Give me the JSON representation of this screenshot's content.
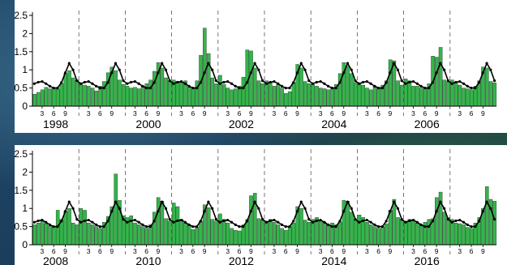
{
  "chart_data": [
    {
      "type": "bar",
      "overlay": "line",
      "ylim": [
        0,
        2.5
      ],
      "yticks": [
        "0",
        "0.5",
        "1",
        "1.5",
        "2",
        "2.5"
      ],
      "month_ticks": [
        "3",
        "6",
        "9"
      ],
      "year_labels": [
        "1998",
        "2000",
        "2002",
        "2004",
        "2006"
      ],
      "start_year": 1998,
      "years": 10,
      "bar_color": "#33b54a",
      "line_color": "#000000",
      "grid": false,
      "bars": [
        0.33,
        0.38,
        0.45,
        0.52,
        0.48,
        0.5,
        0.47,
        0.62,
        0.9,
        0.98,
        0.78,
        0.72,
        0.62,
        0.58,
        0.55,
        0.5,
        0.42,
        0.55,
        0.68,
        0.92,
        1.08,
        0.98,
        0.72,
        0.6,
        0.55,
        0.5,
        0.52,
        0.48,
        0.55,
        0.62,
        0.72,
        0.96,
        1.2,
        1.05,
        0.78,
        0.7,
        0.72,
        0.68,
        0.65,
        0.7,
        0.52,
        0.48,
        0.7,
        1.4,
        2.15,
        1.45,
        0.78,
        0.62,
        0.85,
        0.6,
        0.5,
        0.45,
        0.48,
        0.55,
        0.8,
        1.55,
        1.52,
        1.05,
        0.7,
        0.62,
        0.7,
        0.65,
        0.55,
        0.6,
        0.5,
        0.35,
        0.4,
        0.65,
        1.15,
        1.05,
        0.68,
        0.62,
        0.6,
        0.55,
        0.5,
        0.48,
        0.45,
        0.5,
        0.6,
        0.9,
        1.2,
        1.1,
        0.9,
        0.65,
        0.62,
        0.58,
        0.5,
        0.45,
        0.55,
        0.48,
        0.58,
        0.7,
        1.28,
        1.25,
        0.7,
        0.58,
        0.75,
        0.7,
        0.55,
        0.55,
        0.5,
        0.48,
        0.62,
        1.38,
        1.35,
        1.62,
        0.72,
        0.68,
        0.72,
        0.65,
        0.58,
        0.5,
        0.48,
        0.45,
        0.55,
        0.7,
        1.08,
        1.05,
        0.68,
        0.64
      ],
      "line": [
        0.62,
        0.66,
        0.68,
        0.62,
        0.55,
        0.5,
        0.5,
        0.65,
        0.92,
        1.18,
        1.0,
        0.7,
        0.62,
        0.66,
        0.68,
        0.62,
        0.55,
        0.5,
        0.5,
        0.65,
        0.92,
        1.18,
        1.0,
        0.7,
        0.62,
        0.66,
        0.68,
        0.62,
        0.55,
        0.5,
        0.5,
        0.65,
        0.92,
        1.18,
        1.0,
        0.7,
        0.62,
        0.66,
        0.68,
        0.62,
        0.55,
        0.5,
        0.5,
        0.65,
        0.92,
        1.18,
        1.0,
        0.7,
        0.62,
        0.66,
        0.68,
        0.62,
        0.55,
        0.5,
        0.5,
        0.65,
        0.92,
        1.18,
        1.0,
        0.7,
        0.62,
        0.66,
        0.68,
        0.62,
        0.55,
        0.5,
        0.5,
        0.65,
        0.92,
        1.18,
        1.0,
        0.7,
        0.62,
        0.66,
        0.68,
        0.62,
        0.55,
        0.5,
        0.5,
        0.65,
        0.92,
        1.18,
        1.0,
        0.7,
        0.62,
        0.66,
        0.68,
        0.62,
        0.55,
        0.5,
        0.5,
        0.65,
        0.92,
        1.18,
        1.0,
        0.7,
        0.62,
        0.66,
        0.68,
        0.62,
        0.55,
        0.5,
        0.5,
        0.65,
        0.92,
        1.18,
        1.0,
        0.7,
        0.62,
        0.66,
        0.68,
        0.62,
        0.55,
        0.5,
        0.5,
        0.65,
        0.92,
        1.18,
        1.0,
        0.7
      ]
    },
    {
      "type": "bar",
      "overlay": "line",
      "ylim": [
        0,
        2.5
      ],
      "yticks": [
        "0",
        "0.5",
        "1",
        "1.5",
        "2",
        "2.5"
      ],
      "month_ticks": [
        "3",
        "6",
        "9"
      ],
      "year_labels": [
        "2008",
        "2010",
        "2012",
        "2014",
        "2016"
      ],
      "start_year": 2008,
      "years": 10,
      "bar_color": "#33b54a",
      "line_color": "#000000",
      "grid": false,
      "bars": [
        0.55,
        0.6,
        0.65,
        0.58,
        0.52,
        0.5,
        0.95,
        0.7,
        0.92,
        1.0,
        0.6,
        0.55,
        1.0,
        0.95,
        0.6,
        0.55,
        0.5,
        0.45,
        0.62,
        0.78,
        1.05,
        1.95,
        1.22,
        0.8,
        0.75,
        0.8,
        0.6,
        0.55,
        0.5,
        0.45,
        0.55,
        0.9,
        1.3,
        1.2,
        0.72,
        0.65,
        1.15,
        1.05,
        0.7,
        0.6,
        0.55,
        0.42,
        0.48,
        0.65,
        1.1,
        1.02,
        0.7,
        0.65,
        0.85,
        0.7,
        0.6,
        0.45,
        0.4,
        0.38,
        0.55,
        0.7,
        1.35,
        1.42,
        0.72,
        0.68,
        0.65,
        0.7,
        0.62,
        0.55,
        0.45,
        0.4,
        0.5,
        0.6,
        1.05,
        1.0,
        0.68,
        0.62,
        0.7,
        0.75,
        0.65,
        0.62,
        0.55,
        0.6,
        0.55,
        0.62,
        1.22,
        1.2,
        0.9,
        0.7,
        0.82,
        0.75,
        0.62,
        0.55,
        0.5,
        0.45,
        0.5,
        0.58,
        0.95,
        1.25,
        0.75,
        0.7,
        0.65,
        0.7,
        0.68,
        0.6,
        0.55,
        0.62,
        0.7,
        0.72,
        1.3,
        1.45,
        0.9,
        0.75,
        0.7,
        0.6,
        0.58,
        0.55,
        0.48,
        0.45,
        0.6,
        0.75,
        1.0,
        1.6,
        1.25,
        1.2
      ],
      "line": [
        0.62,
        0.66,
        0.68,
        0.62,
        0.55,
        0.5,
        0.5,
        0.65,
        0.92,
        1.18,
        1.0,
        0.7,
        0.62,
        0.66,
        0.68,
        0.62,
        0.55,
        0.5,
        0.5,
        0.65,
        0.92,
        1.18,
        1.0,
        0.7,
        0.62,
        0.66,
        0.68,
        0.62,
        0.55,
        0.5,
        0.5,
        0.65,
        0.92,
        1.18,
        1.0,
        0.7,
        0.62,
        0.66,
        0.68,
        0.62,
        0.55,
        0.5,
        0.5,
        0.65,
        0.92,
        1.18,
        1.0,
        0.7,
        0.62,
        0.66,
        0.68,
        0.62,
        0.55,
        0.5,
        0.5,
        0.65,
        0.92,
        1.18,
        1.0,
        0.7,
        0.62,
        0.66,
        0.68,
        0.62,
        0.55,
        0.5,
        0.5,
        0.65,
        0.92,
        1.18,
        1.0,
        0.7,
        0.62,
        0.66,
        0.68,
        0.62,
        0.55,
        0.5,
        0.5,
        0.65,
        0.92,
        1.18,
        1.0,
        0.7,
        0.62,
        0.66,
        0.68,
        0.62,
        0.55,
        0.5,
        0.5,
        0.65,
        0.92,
        1.18,
        1.0,
        0.7,
        0.62,
        0.66,
        0.68,
        0.62,
        0.55,
        0.5,
        0.5,
        0.65,
        0.92,
        1.18,
        1.0,
        0.7,
        0.62,
        0.66,
        0.68,
        0.62,
        0.55,
        0.5,
        0.5,
        0.65,
        0.92,
        1.18,
        1.0,
        0.7
      ]
    }
  ]
}
